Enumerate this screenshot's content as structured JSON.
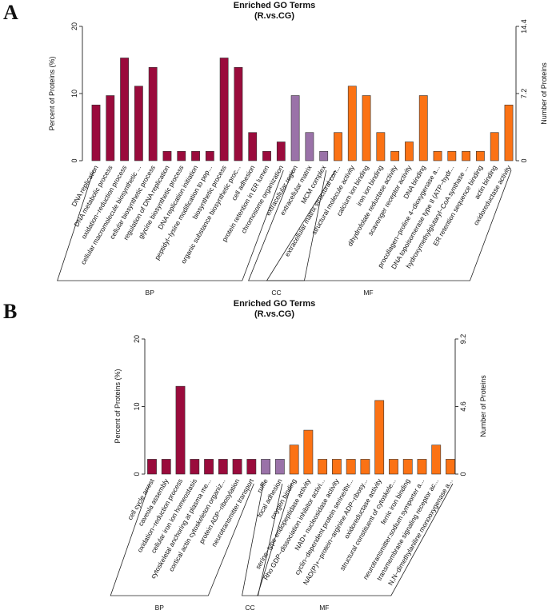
{
  "colors": {
    "BP": "#9a0b3c",
    "CC": "#9a72a8",
    "MF": "#fb7214"
  },
  "chart_data": [
    {
      "type": "bar",
      "panel": "A",
      "title": "Enriched GO Terms",
      "subtitle": "(R.vs.CG)",
      "ylabel": "Percent of Proteins (%)",
      "y2label": "Number of Proteins",
      "ylim": [
        0,
        20
      ],
      "yticks": [
        "0",
        "10",
        "20"
      ],
      "y2lim": [
        0,
        14.4
      ],
      "y2ticks": [
        "0",
        "7.2",
        "14.4"
      ],
      "groups": [
        "BP",
        "CC",
        "MF"
      ],
      "categories": [
        {
          "label": "DNA replication",
          "group": "BP",
          "value": 8.3
        },
        {
          "label": "DNA metabolic process",
          "group": "BP",
          "value": 9.7
        },
        {
          "label": "oxidation−reduction process",
          "group": "BP",
          "value": 15.3
        },
        {
          "label": "cellular macromolecule biosynthetic ...",
          "group": "BP",
          "value": 11.1
        },
        {
          "label": "cellular biosynthetic process",
          "group": "BP",
          "value": 13.9
        },
        {
          "label": "regulation of DNA replication",
          "group": "BP",
          "value": 1.4
        },
        {
          "label": "glycine biosynthetic process",
          "group": "BP",
          "value": 1.4
        },
        {
          "label": "DNA replication initiation",
          "group": "BP",
          "value": 1.4
        },
        {
          "label": "peptidyl−lysine modification to pep...",
          "group": "BP",
          "value": 1.4
        },
        {
          "label": "biosynthetic process",
          "group": "BP",
          "value": 15.3
        },
        {
          "label": "organic substance biosynthetic proc...",
          "group": "BP",
          "value": 13.9
        },
        {
          "label": "cell adhesion",
          "group": "BP",
          "value": 4.2
        },
        {
          "label": "protein retention in ER lumen",
          "group": "BP",
          "value": 1.4
        },
        {
          "label": "chromosome organization",
          "group": "BP",
          "value": 2.8
        },
        {
          "label": "extracellular region",
          "group": "CC",
          "value": 9.7
        },
        {
          "label": "extracellular matrix",
          "group": "CC",
          "value": 4.2
        },
        {
          "label": "MCM complex",
          "group": "CC",
          "value": 1.4
        },
        {
          "label": "extracellular matrix structural con...",
          "group": "MF",
          "value": 4.2
        },
        {
          "label": "structural molecule activity",
          "group": "MF",
          "value": 11.1
        },
        {
          "label": "calcium ion binding",
          "group": "MF",
          "value": 9.7
        },
        {
          "label": "iron ion binding",
          "group": "MF",
          "value": 4.2
        },
        {
          "label": "dihydrofolate reductase activity",
          "group": "MF",
          "value": 1.4
        },
        {
          "label": "scavenger receptor activity",
          "group": "MF",
          "value": 2.8
        },
        {
          "label": "DNA binding",
          "group": "MF",
          "value": 9.7
        },
        {
          "label": "procollagen−proline 4−dioxygenase a...",
          "group": "MF",
          "value": 1.4
        },
        {
          "label": "DNA topoisomerase type II (ATP−hydr...",
          "group": "MF",
          "value": 1.4
        },
        {
          "label": "hydroxymethylglutaryl−CoA synthase ...",
          "group": "MF",
          "value": 1.4
        },
        {
          "label": "ER retention sequence binding",
          "group": "MF",
          "value": 1.4
        },
        {
          "label": "actin binding",
          "group": "MF",
          "value": 4.2
        },
        {
          "label": "oxidoreductase activity",
          "group": "MF",
          "value": 8.3
        }
      ]
    },
    {
      "type": "bar",
      "panel": "B",
      "title": "Enriched GO Terms",
      "subtitle": "(R.vs.CG)",
      "ylabel": "Percent of Proteins (%)",
      "y2label": "Number of Proteins",
      "ylim": [
        0,
        20
      ],
      "yticks": [
        "0",
        "10",
        "20"
      ],
      "y2lim": [
        0,
        9.2
      ],
      "y2ticks": [
        "0",
        "4.6",
        "9.2"
      ],
      "groups": [
        "BP",
        "CC",
        "MF"
      ],
      "categories": [
        {
          "label": "cell cycle arrest",
          "group": "BP",
          "value": 2.2
        },
        {
          "label": "caveola assembly",
          "group": "BP",
          "value": 2.2
        },
        {
          "label": "oxidation−reduction process",
          "group": "BP",
          "value": 13.0
        },
        {
          "label": "cellular iron ion homeostasis",
          "group": "BP",
          "value": 2.2
        },
        {
          "label": "cytoskeletal anchoring at plasma me...",
          "group": "BP",
          "value": 2.2
        },
        {
          "label": "cortical actin cytoskeleton organiz...",
          "group": "BP",
          "value": 2.2
        },
        {
          "label": "protein ADP−ribosylation",
          "group": "BP",
          "value": 2.2
        },
        {
          "label": "neurotransmitter transport",
          "group": "BP",
          "value": 2.2
        },
        {
          "label": "ruffle",
          "group": "CC",
          "value": 2.2
        },
        {
          "label": "focal adhesion",
          "group": "CC",
          "value": 2.2
        },
        {
          "label": "oxygen binding",
          "group": "MF",
          "value": 4.3
        },
        {
          "label": "serine−type endopeptidase activity",
          "group": "MF",
          "value": 6.5
        },
        {
          "label": "Rho GDP−dissociation inhibitor activi...",
          "group": "MF",
          "value": 2.2
        },
        {
          "label": "NAD+ nucleosidase activity",
          "group": "MF",
          "value": 2.2
        },
        {
          "label": "cyclin−dependent protein serine/thr...",
          "group": "MF",
          "value": 2.2
        },
        {
          "label": "NAD(P)+−protein−arginine ADP−ribosy...",
          "group": "MF",
          "value": 2.2
        },
        {
          "label": "oxidoreductase activity",
          "group": "MF",
          "value": 10.9
        },
        {
          "label": "structural constituent of cytoskele...",
          "group": "MF",
          "value": 2.2
        },
        {
          "label": "ferric iron binding",
          "group": "MF",
          "value": 2.2
        },
        {
          "label": "neurotransmitter:sodium symporter a...",
          "group": "MF",
          "value": 2.2
        },
        {
          "label": "transmembrane signaling receptor ac...",
          "group": "MF",
          "value": 4.3
        },
        {
          "label": "N,N−dimethylaniline monooxygenase a...",
          "group": "MF",
          "value": 2.2
        }
      ]
    }
  ]
}
